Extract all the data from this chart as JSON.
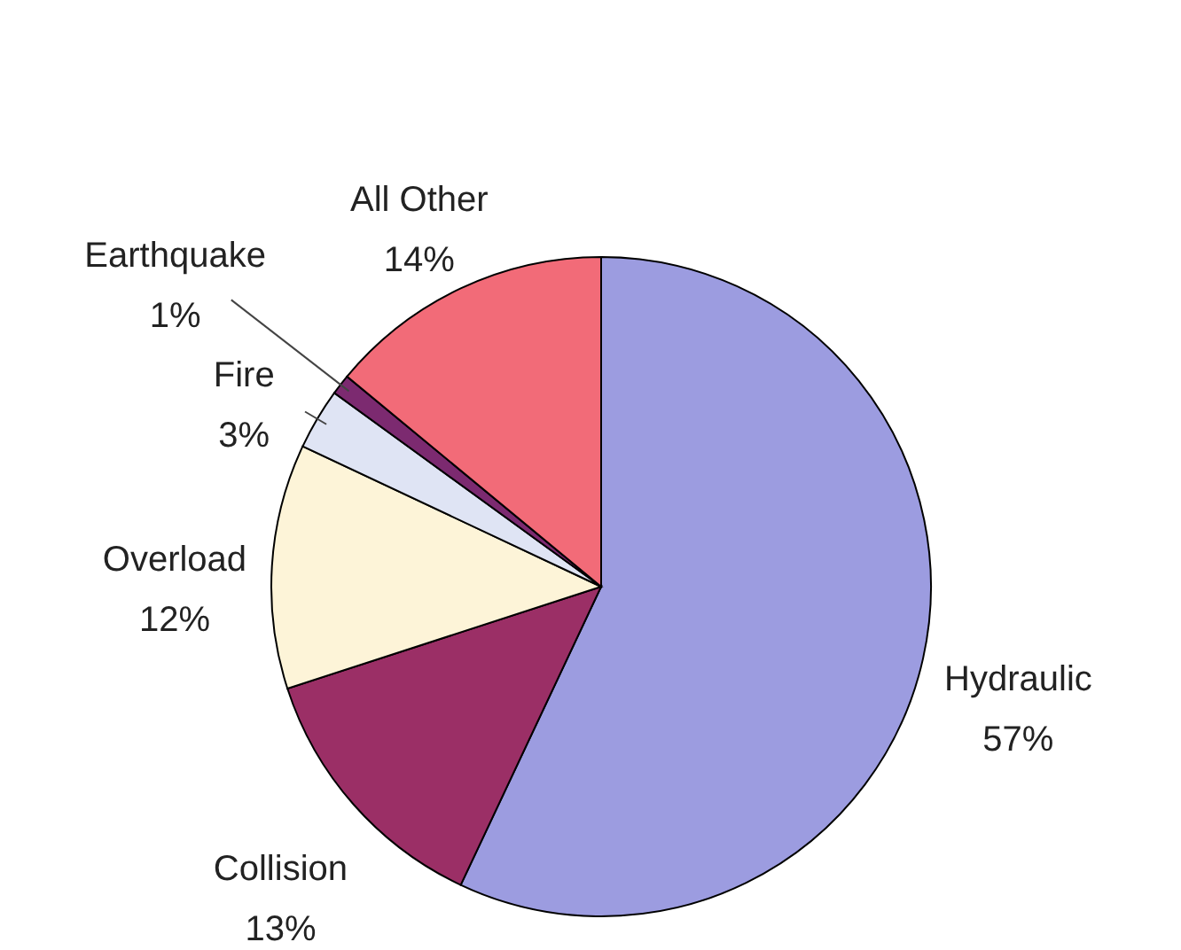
{
  "chart_data": {
    "type": "pie",
    "categories": [
      "Hydraulic",
      "Collision",
      "Overload",
      "Fire",
      "Earthquake",
      "All Other"
    ],
    "values": [
      57,
      13,
      12,
      3,
      1,
      14
    ],
    "value_labels": [
      "57%",
      "13%",
      "12%",
      "3%",
      "1%",
      "14%"
    ],
    "colors": [
      "#9c9ce0",
      "#9b2f66",
      "#fdf4d8",
      "#dfe4f4",
      "#7c2a70",
      "#f26b78"
    ]
  }
}
